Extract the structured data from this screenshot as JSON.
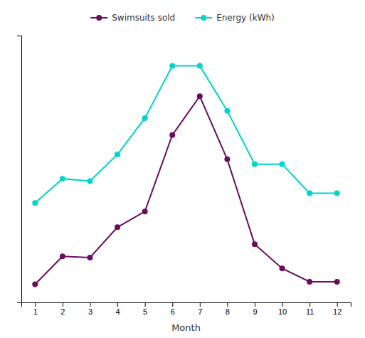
{
  "chart_data": {
    "type": "line",
    "x": [
      1,
      2,
      3,
      4,
      5,
      6,
      7,
      8,
      9,
      10,
      11,
      12
    ],
    "series": [
      {
        "name": "Swimsuits sold",
        "color": "#6b0c5e",
        "marker": "circle",
        "values": [
          5,
          28,
          27,
          52,
          65,
          128,
          160,
          108,
          38,
          18,
          7,
          7
        ]
      },
      {
        "name": "Energy (kWh)",
        "color": "#00d4cc",
        "marker": "circle",
        "values": [
          72,
          92,
          90,
          112,
          142,
          185,
          185,
          148,
          104,
          104,
          80,
          80
        ]
      }
    ],
    "xlabel": "Month",
    "xlim": [
      0.5,
      12.5
    ],
    "xticks": [
      1,
      2,
      3,
      4,
      5,
      6,
      7,
      8,
      9,
      10,
      11,
      12
    ],
    "ylim": [
      -10,
      210
    ],
    "yticks": [],
    "grid": false,
    "legend": "top",
    "tick_labels": "x"
  }
}
